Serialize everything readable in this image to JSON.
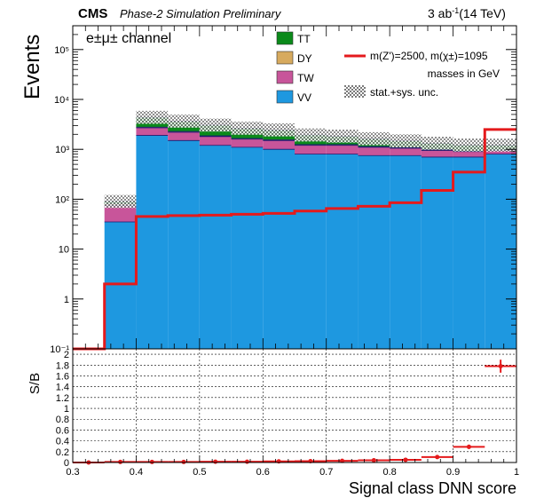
{
  "header": {
    "experiment": "CMS",
    "subtitle": "Phase-2 Simulation Preliminary",
    "lumi": "3 ab",
    "lumi_sup": "-1",
    "energy": "(14 TeV)"
  },
  "channel_label": "e±μ± channel",
  "legend": {
    "stack_entries": [
      {
        "name": "TT",
        "color": "#0b8a1a"
      },
      {
        "name": "DY",
        "color": "#d7aa5e"
      },
      {
        "name": "TW",
        "color": "#c8559a"
      },
      {
        "name": "VV",
        "color": "#1e98e0"
      }
    ],
    "signal_label": "m(Z')=2500, m(χ±)=1095",
    "signal_color": "#e41a1c",
    "signal_note": "masses in GeV",
    "unc_label": "stat.+sys. unc."
  },
  "chart_data": [
    {
      "type": "bar",
      "stacked": true,
      "ylabel": "Events",
      "ylog": true,
      "ylim": [
        0.1,
        300000
      ],
      "xlim": [
        0.3,
        1.0
      ],
      "bin_edges": [
        0.3,
        0.35,
        0.4,
        0.45,
        0.5,
        0.55,
        0.6,
        0.65,
        0.7,
        0.75,
        0.8,
        0.85,
        0.9,
        0.95,
        1.0
      ],
      "ytick_labels": [
        "10⁻¹",
        "1",
        "10",
        "10²",
        "10³",
        "10⁴",
        "10⁵"
      ],
      "series": [
        {
          "name": "VV",
          "values": [
            0.1,
            35,
            1900,
            1500,
            1200,
            1100,
            1000,
            800,
            800,
            750,
            750,
            700,
            700,
            800
          ]
        },
        {
          "name": "TW",
          "values": [
            0.0,
            40,
            800,
            700,
            600,
            500,
            500,
            400,
            400,
            350,
            300,
            250,
            200,
            150
          ]
        },
        {
          "name": "DY",
          "values": [
            0.0,
            5,
            80,
            70,
            60,
            50,
            50,
            40,
            40,
            35,
            30,
            25,
            20,
            15
          ]
        },
        {
          "name": "TT",
          "values": [
            0.0,
            10,
            1600,
            1400,
            1200,
            1000,
            900,
            700,
            600,
            500,
            400,
            350,
            300,
            250
          ]
        },
        {
          "name": "m(Z')=2500, m(χ±)=1095",
          "kind": "step",
          "values": [
            0.1,
            2,
            45,
            47,
            48,
            50,
            52,
            58,
            65,
            72,
            85,
            150,
            350,
            2500
          ]
        }
      ]
    },
    {
      "type": "scatter",
      "ylabel": "S/B",
      "xlabel": "Signal class DNN score",
      "xlim": [
        0.3,
        1.0
      ],
      "ylim": [
        0,
        2.1
      ],
      "xticks": [
        "0.3",
        "0.4",
        "0.5",
        "0.6",
        "0.7",
        "0.8",
        "0.9",
        "1"
      ],
      "yticks": [
        "0",
        "0.2",
        "0.4",
        "0.6",
        "0.8",
        "1",
        "1.2",
        "1.4",
        "1.6",
        "1.8",
        "2"
      ],
      "points": [
        {
          "x": 0.325,
          "y": 0.0,
          "err": 0.01
        },
        {
          "x": 0.375,
          "y": 0.01,
          "err": 0.01
        },
        {
          "x": 0.425,
          "y": 0.01,
          "err": 0.005
        },
        {
          "x": 0.475,
          "y": 0.01,
          "err": 0.005
        },
        {
          "x": 0.525,
          "y": 0.015,
          "err": 0.005
        },
        {
          "x": 0.575,
          "y": 0.015,
          "err": 0.005
        },
        {
          "x": 0.625,
          "y": 0.02,
          "err": 0.005
        },
        {
          "x": 0.675,
          "y": 0.025,
          "err": 0.005
        },
        {
          "x": 0.725,
          "y": 0.03,
          "err": 0.005
        },
        {
          "x": 0.775,
          "y": 0.04,
          "err": 0.01
        },
        {
          "x": 0.825,
          "y": 0.05,
          "err": 0.01
        },
        {
          "x": 0.875,
          "y": 0.1,
          "err": 0.02
        },
        {
          "x": 0.925,
          "y": 0.29,
          "err": 0.04
        },
        {
          "x": 0.975,
          "y": 1.78,
          "err": 0.12
        }
      ]
    }
  ]
}
